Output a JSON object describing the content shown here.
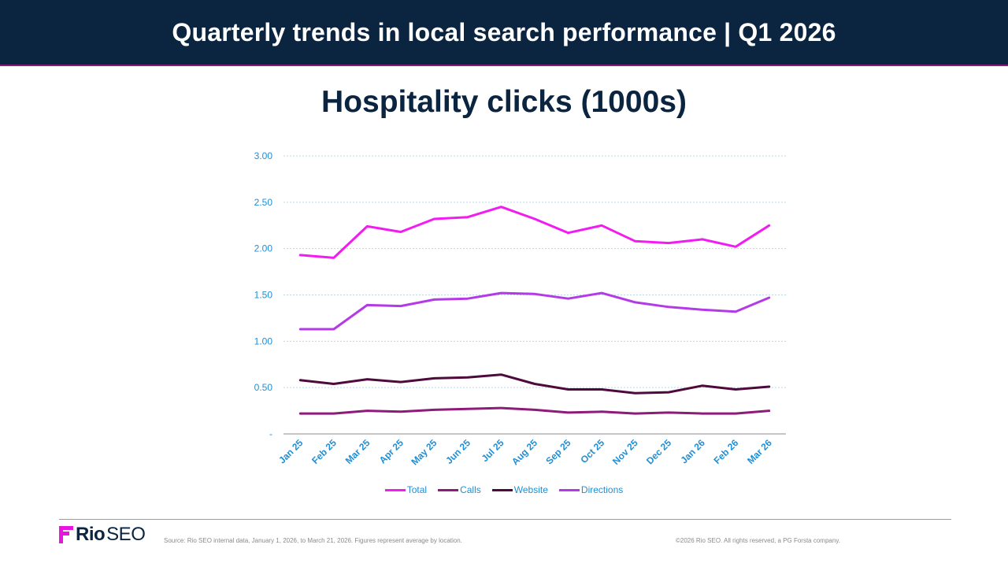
{
  "header": {
    "title": "Quarterly trends in local search performance | Q1 2026"
  },
  "footer": {
    "logo_rio": "Rio",
    "logo_seo": "SEO",
    "source": "Source: Rio SEO internal data, January 1, 2026, to March 21, 2026. Figures represent average by location.",
    "copyright": "©2026 Rio SEO. All rights reserved, a PG Forsta company."
  },
  "colors": {
    "header_bg": "#0b2440",
    "accent": "#e815e0",
    "axis_text": "#1f8fd6",
    "grid": "#bcd8e6"
  },
  "chart_data": {
    "type": "line",
    "title": "Hospitality clicks (1000s)",
    "xlabel": "",
    "ylabel": "",
    "ylim": [
      0,
      3
    ],
    "grid": true,
    "legend_position": "bottom",
    "y_ticks": [
      {
        "value": 0,
        "label": "-"
      },
      {
        "value": 0.5,
        "label": "0.50"
      },
      {
        "value": 1.0,
        "label": "1.00"
      },
      {
        "value": 1.5,
        "label": "1.50"
      },
      {
        "value": 2.0,
        "label": "2.00"
      },
      {
        "value": 2.5,
        "label": "2.50"
      },
      {
        "value": 3.0,
        "label": "3.00"
      }
    ],
    "categories": [
      "Jan 25",
      "Feb 25",
      "Mar 25",
      "Apr 25",
      "May 25",
      "Jun 25",
      "Jul 25",
      "Aug 25",
      "Sep 25",
      "Oct 25",
      "Nov 25",
      "Dec 25",
      "Jan 26",
      "Feb 26",
      "Mar 26"
    ],
    "series": [
      {
        "name": "Total",
        "color": "#f21cf0",
        "values": [
          1.93,
          1.9,
          2.24,
          2.18,
          2.32,
          2.34,
          2.45,
          2.32,
          2.17,
          2.25,
          2.08,
          2.06,
          2.1,
          2.02,
          2.25
        ]
      },
      {
        "name": "Calls",
        "color": "#8e1a7a",
        "values": [
          0.22,
          0.22,
          0.25,
          0.24,
          0.26,
          0.27,
          0.28,
          0.26,
          0.23,
          0.24,
          0.22,
          0.23,
          0.22,
          0.22,
          0.25
        ]
      },
      {
        "name": "Website",
        "color": "#4e0a3c",
        "values": [
          0.58,
          0.54,
          0.59,
          0.56,
          0.6,
          0.61,
          0.64,
          0.54,
          0.48,
          0.48,
          0.44,
          0.45,
          0.52,
          0.48,
          0.51
        ]
      },
      {
        "name": "Directions",
        "color": "#b43ae8",
        "values": [
          1.13,
          1.13,
          1.39,
          1.38,
          1.45,
          1.46,
          1.52,
          1.51,
          1.46,
          1.52,
          1.42,
          1.37,
          1.34,
          1.32,
          1.47
        ]
      }
    ]
  }
}
